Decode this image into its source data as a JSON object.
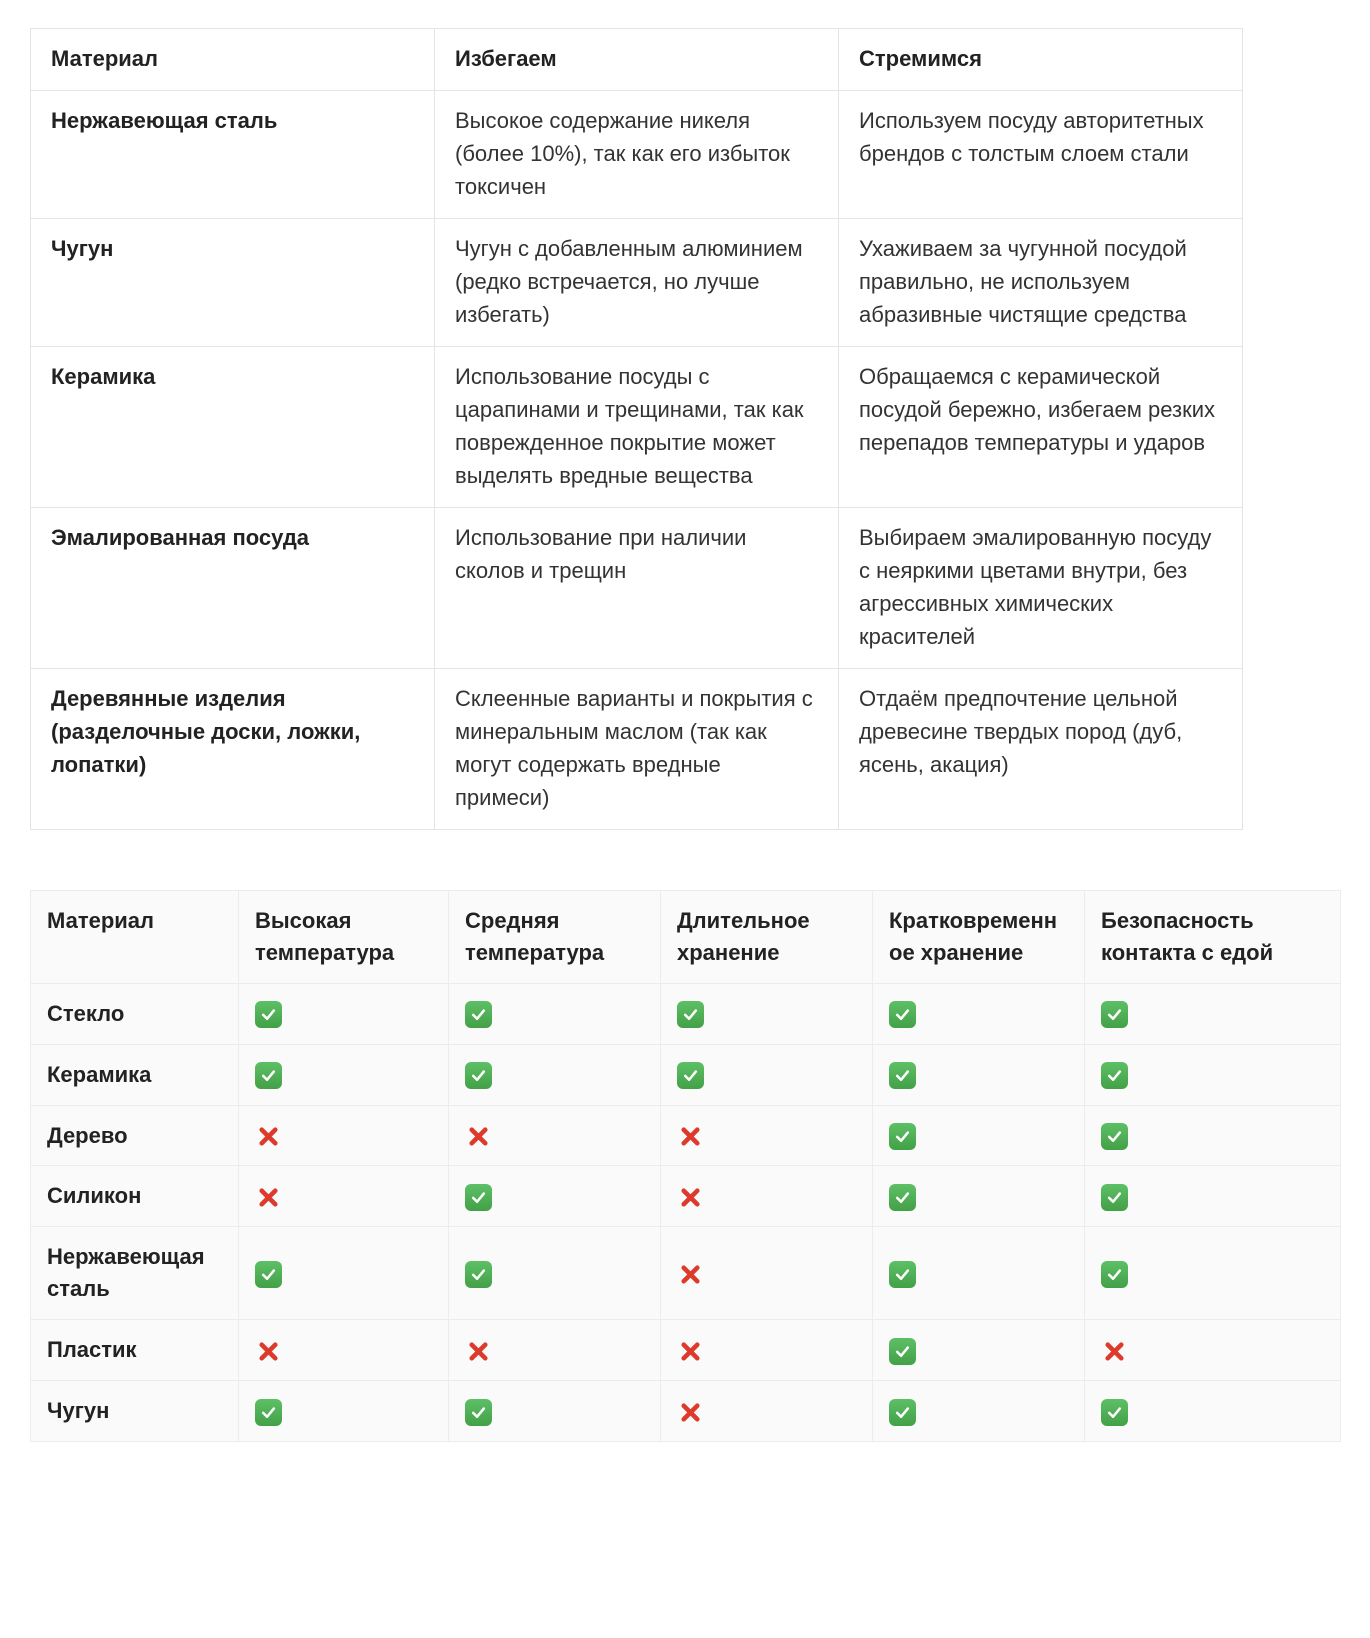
{
  "comparison_table": {
    "headers": [
      "Материал",
      "Избегаем",
      "Стремимся"
    ],
    "rows": [
      {
        "material": "Нержавеющая сталь",
        "avoid": "Высокое содержание никеля (более 10%), так как его избыток токсичен",
        "strive": "Используем посуду авторитетных брендов с толстым слоем стали"
      },
      {
        "material": "Чугун",
        "avoid": "Чугун с добавленным алюминием (редко встречается, но лучше избегать)",
        "strive": "Ухаживаем за чугунной посудой правильно, не используем абразивные чистящие средства"
      },
      {
        "material": "Керамика",
        "avoid": "Использование посуды с царапинами и трещинами, так как поврежденное покрытие может выделять вредные вещества",
        "strive": "Обращаемся с керамической посудой бережно, избегаем резких перепадов температуры и ударов"
      },
      {
        "material": "Эмалированная посуда",
        "avoid": "Использование при наличии сколов и трещин",
        "strive": "Выбираем эмалированную посуду с неяркими цветами внутри, без агрессивных химических красителей"
      },
      {
        "material": "Деревянные изделия (разделочные доски, ложки, лопатки)",
        "avoid": "Склеенные варианты и покрытия с минеральным маслом (так как могут содержать вредные примеси)",
        "strive": "Отдаём предпочтение цельной древесине твердых пород (дуб, ясень, акация)"
      }
    ]
  },
  "safety_table": {
    "headers": [
      "Материал",
      "Высокая температура",
      "Средняя температура",
      "Длительное хранение",
      "Кратковременное хранение",
      "Безопасность контакта с едой"
    ],
    "rows": [
      {
        "material": "Стекло",
        "values": [
          "yes",
          "yes",
          "yes",
          "yes",
          "yes"
        ]
      },
      {
        "material": "Керамика",
        "values": [
          "yes",
          "yes",
          "yes",
          "yes",
          "yes"
        ]
      },
      {
        "material": "Дерево",
        "values": [
          "no",
          "no",
          "no",
          "yes",
          "yes"
        ]
      },
      {
        "material": "Силикон",
        "values": [
          "no",
          "yes",
          "no",
          "yes",
          "yes"
        ]
      },
      {
        "material": "Нержавеющая сталь",
        "values": [
          "yes",
          "yes",
          "no",
          "yes",
          "yes"
        ]
      },
      {
        "material": "Пластик",
        "values": [
          "no",
          "no",
          "no",
          "yes",
          "no"
        ]
      },
      {
        "material": "Чугун",
        "values": [
          "yes",
          "yes",
          "no",
          "yes",
          "yes"
        ]
      }
    ]
  },
  "icons": {
    "check_name": "check-icon",
    "cross_name": "cross-icon"
  },
  "colors": {
    "check_green": "#43a047",
    "cross_red": "#de3a2c",
    "text": "#333333",
    "border": "#e4e4e4"
  }
}
